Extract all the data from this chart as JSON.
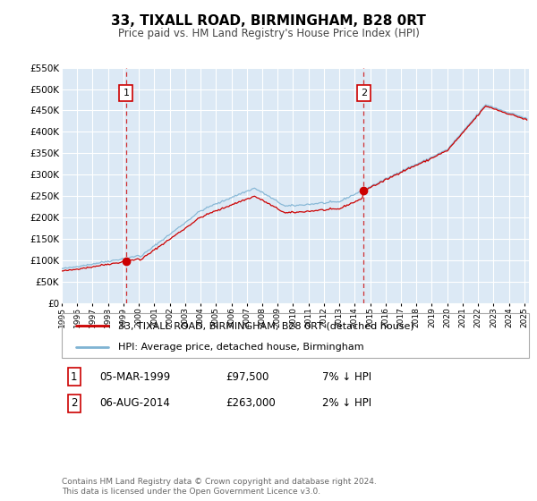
{
  "title": "33, TIXALL ROAD, BIRMINGHAM, B28 0RT",
  "subtitle": "Price paid vs. HM Land Registry's House Price Index (HPI)",
  "title_fontsize": 11,
  "subtitle_fontsize": 8.5,
  "ylim": [
    0,
    550000
  ],
  "yticks": [
    0,
    50000,
    100000,
    150000,
    200000,
    250000,
    300000,
    350000,
    400000,
    450000,
    500000,
    550000
  ],
  "ytick_labels": [
    "£0",
    "£50K",
    "£100K",
    "£150K",
    "£200K",
    "£250K",
    "£300K",
    "£350K",
    "£400K",
    "£450K",
    "£500K",
    "£550K"
  ],
  "xmin": 1995.0,
  "xmax": 2025.3,
  "background_color": "#ffffff",
  "plot_bg_color": "#dce9f5",
  "grid_color": "#ffffff",
  "red_color": "#cc0000",
  "blue_color": "#7fb3d3",
  "sale1_year": 1999.17,
  "sale1_price": 97500,
  "sale2_year": 2014.58,
  "sale2_price": 263000,
  "legend_line1": "33, TIXALL ROAD, BIRMINGHAM, B28 0RT (detached house)",
  "legend_line2": "HPI: Average price, detached house, Birmingham",
  "table_row1_label": "1",
  "table_row1_date": "05-MAR-1999",
  "table_row1_price": "£97,500",
  "table_row1_hpi": "7% ↓ HPI",
  "table_row2_label": "2",
  "table_row2_date": "06-AUG-2014",
  "table_row2_price": "£263,000",
  "table_row2_hpi": "2% ↓ HPI",
  "footer": "Contains HM Land Registry data © Crown copyright and database right 2024.\nThis data is licensed under the Open Government Licence v3.0."
}
